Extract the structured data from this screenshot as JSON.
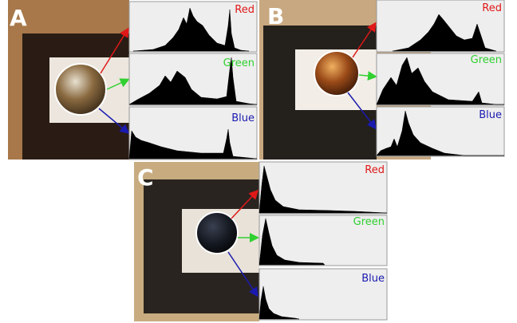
{
  "panels": [
    {
      "label": "A",
      "channels": [
        "Red",
        "Green",
        "Blue"
      ]
    },
    {
      "label": "B",
      "channels": [
        "Red",
        "Green",
        "Blue"
      ]
    },
    {
      "label": "C",
      "channels": [
        "Red",
        "Green",
        "Blue"
      ]
    }
  ]
}
